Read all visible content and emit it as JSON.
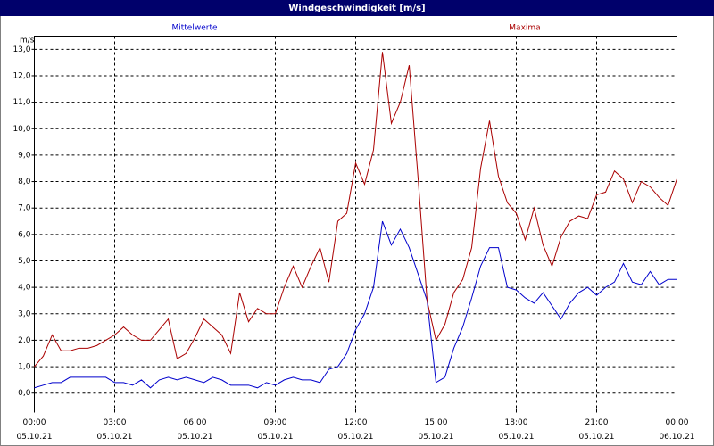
{
  "chart_data": {
    "type": "line",
    "title": "Windgeschwindigkeit [m/s]",
    "y_unit": "m/s",
    "x": [
      0,
      20,
      40,
      60,
      80,
      100,
      120,
      140,
      160,
      180,
      200,
      220,
      240,
      260,
      280,
      300,
      320,
      340,
      360,
      380,
      400,
      420,
      440,
      460,
      480,
      500,
      520,
      540,
      560,
      580,
      600,
      620,
      640,
      660,
      680,
      700,
      720,
      740,
      760,
      780,
      800,
      820,
      840,
      860,
      880,
      900,
      920,
      940,
      960,
      980,
      1000,
      1020,
      1040,
      1060,
      1080,
      1100,
      1120,
      1140,
      1160,
      1180,
      1200,
      1220,
      1240,
      1260,
      1280,
      1300,
      1320,
      1340,
      1360,
      1380,
      1400,
      1420,
      1440
    ],
    "series": [
      {
        "name": "Mittelwerte",
        "color": "#0000cc",
        "values": [
          0.2,
          0.3,
          0.4,
          0.4,
          0.6,
          0.6,
          0.6,
          0.6,
          0.6,
          0.4,
          0.4,
          0.3,
          0.5,
          0.2,
          0.5,
          0.6,
          0.5,
          0.6,
          0.5,
          0.4,
          0.6,
          0.5,
          0.3,
          0.3,
          0.3,
          0.2,
          0.4,
          0.3,
          0.5,
          0.6,
          0.5,
          0.5,
          0.4,
          0.9,
          1.0,
          1.5,
          2.4,
          3.0,
          4.0,
          6.5,
          5.6,
          6.2,
          5.5,
          4.5,
          3.5,
          0.4,
          0.6,
          1.7,
          2.5,
          3.6,
          4.8,
          5.5,
          5.5,
          4.0,
          3.9,
          3.6,
          3.4,
          3.8,
          3.3,
          2.8,
          3.4,
          3.8,
          4.0,
          3.7,
          4.0,
          4.2,
          4.9,
          4.2,
          4.1,
          4.6,
          4.1,
          4.3,
          4.3
        ]
      },
      {
        "name": "Maxima",
        "color": "#aa0000",
        "values": [
          1.0,
          1.4,
          2.2,
          1.6,
          1.6,
          1.7,
          1.7,
          1.8,
          2.0,
          2.2,
          2.5,
          2.2,
          2.0,
          2.0,
          2.4,
          2.8,
          1.3,
          1.5,
          2.1,
          2.8,
          2.5,
          2.2,
          1.5,
          3.8,
          2.7,
          3.2,
          3.0,
          3.0,
          4.0,
          4.8,
          4.0,
          4.8,
          5.5,
          4.2,
          6.5,
          6.8,
          8.7,
          7.9,
          9.2,
          12.9,
          10.2,
          11.0,
          12.4,
          8.1,
          3.5,
          2.0,
          2.6,
          3.8,
          4.3,
          5.5,
          8.5,
          10.3,
          8.2,
          7.2,
          6.8,
          5.8,
          7.0,
          5.6,
          4.8,
          5.9,
          6.5,
          6.7,
          6.6,
          7.5,
          7.6,
          8.4,
          8.1,
          7.2,
          8.0,
          7.8,
          7.4,
          7.1,
          8.1
        ]
      }
    ],
    "xlim": [
      0,
      1440
    ],
    "xticks": [
      {
        "value": 0,
        "label": "00:00"
      },
      {
        "value": 180,
        "label": "03:00"
      },
      {
        "value": 360,
        "label": "06:00"
      },
      {
        "value": 540,
        "label": "09:00"
      },
      {
        "value": 720,
        "label": "12:00"
      },
      {
        "value": 900,
        "label": "15:00"
      },
      {
        "value": 1080,
        "label": "18:00"
      },
      {
        "value": 1260,
        "label": "21:00"
      },
      {
        "value": 1440,
        "label": "00:00"
      }
    ],
    "xtick_dates": [
      "05.10.21",
      "05.10.21",
      "05.10.21",
      "05.10.21",
      "05.10.21",
      "05.10.21",
      "05.10.21",
      "05.10.21",
      "06.10.21"
    ],
    "ylim": [
      -0.6,
      13.5
    ],
    "yticks": [
      {
        "value": 0,
        "label": "0,0"
      },
      {
        "value": 1,
        "label": "1,0"
      },
      {
        "value": 2,
        "label": "2,0"
      },
      {
        "value": 3,
        "label": "3,0"
      },
      {
        "value": 4,
        "label": "4,0"
      },
      {
        "value": 5,
        "label": "5,0"
      },
      {
        "value": 6,
        "label": "6,0"
      },
      {
        "value": 7,
        "label": "7,0"
      },
      {
        "value": 8,
        "label": "8,0"
      },
      {
        "value": 9,
        "label": "9,0"
      },
      {
        "value": 10,
        "label": "10,0"
      },
      {
        "value": 11,
        "label": "11,0"
      },
      {
        "value": 12,
        "label": "12,0"
      },
      {
        "value": 13,
        "label": "13,0"
      }
    ],
    "grid": true
  }
}
